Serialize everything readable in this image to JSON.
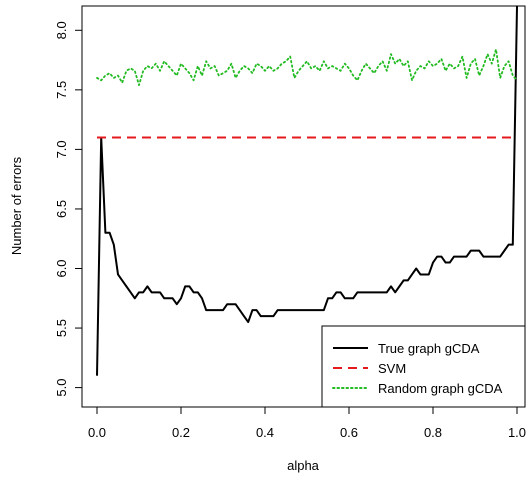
{
  "chart_data": {
    "type": "line",
    "xlabel": "alpha",
    "ylabel": "Number of errors",
    "xlim": [
      0.0,
      1.0
    ],
    "ylim": [
      5.0,
      8.2
    ],
    "xticks": [
      "0.0",
      "0.2",
      "0.4",
      "0.6",
      "0.8",
      "1.0"
    ],
    "yticks": [
      "5.0",
      "5.5",
      "6.0",
      "6.5",
      "7.0",
      "7.5",
      "8.0"
    ],
    "grid": false,
    "legend_position": "bottom-right",
    "series": [
      {
        "name": "True graph gCDA",
        "style": "solid",
        "color": "#000000",
        "x": [
          0.0,
          0.01,
          0.02,
          0.03,
          0.04,
          0.05,
          0.06,
          0.07,
          0.08,
          0.09,
          0.1,
          0.11,
          0.12,
          0.13,
          0.14,
          0.15,
          0.16,
          0.17,
          0.18,
          0.19,
          0.2,
          0.21,
          0.22,
          0.23,
          0.24,
          0.25,
          0.26,
          0.27,
          0.28,
          0.29,
          0.3,
          0.31,
          0.32,
          0.33,
          0.34,
          0.35,
          0.36,
          0.37,
          0.38,
          0.39,
          0.4,
          0.41,
          0.42,
          0.43,
          0.44,
          0.45,
          0.46,
          0.47,
          0.48,
          0.49,
          0.5,
          0.51,
          0.52,
          0.53,
          0.54,
          0.55,
          0.56,
          0.57,
          0.58,
          0.59,
          0.6,
          0.61,
          0.62,
          0.63,
          0.64,
          0.65,
          0.66,
          0.67,
          0.68,
          0.69,
          0.7,
          0.71,
          0.72,
          0.73,
          0.74,
          0.75,
          0.76,
          0.77,
          0.78,
          0.79,
          0.8,
          0.81,
          0.82,
          0.83,
          0.84,
          0.85,
          0.86,
          0.87,
          0.88,
          0.89,
          0.9,
          0.91,
          0.92,
          0.93,
          0.94,
          0.95,
          0.96,
          0.97,
          0.98,
          0.99,
          1.0
        ],
        "y": [
          5.1,
          7.1,
          6.3,
          6.3,
          6.2,
          5.95,
          5.9,
          5.85,
          5.8,
          5.75,
          5.8,
          5.8,
          5.85,
          5.8,
          5.8,
          5.8,
          5.75,
          5.75,
          5.75,
          5.7,
          5.75,
          5.85,
          5.85,
          5.8,
          5.8,
          5.75,
          5.65,
          5.65,
          5.65,
          5.65,
          5.65,
          5.7,
          5.7,
          5.7,
          5.65,
          5.6,
          5.55,
          5.65,
          5.65,
          5.6,
          5.6,
          5.6,
          5.6,
          5.65,
          5.65,
          5.65,
          5.65,
          5.65,
          5.65,
          5.65,
          5.65,
          5.65,
          5.65,
          5.65,
          5.65,
          5.75,
          5.75,
          5.8,
          5.8,
          5.75,
          5.75,
          5.75,
          5.8,
          5.8,
          5.8,
          5.8,
          5.8,
          5.8,
          5.8,
          5.8,
          5.85,
          5.8,
          5.85,
          5.9,
          5.9,
          5.95,
          6.0,
          5.95,
          5.95,
          5.95,
          6.05,
          6.1,
          6.1,
          6.05,
          6.05,
          6.1,
          6.1,
          6.1,
          6.1,
          6.15,
          6.15,
          6.15,
          6.1,
          6.1,
          6.1,
          6.1,
          6.1,
          6.15,
          6.2,
          6.2,
          8.2
        ]
      },
      {
        "name": "SVM",
        "style": "dashed",
        "color": "#e41a1c",
        "x": [
          0.0,
          1.0
        ],
        "y": [
          7.1,
          7.1
        ]
      },
      {
        "name": "Random graph gCDA",
        "style": "dotted",
        "color": "#22bb22",
        "x": [
          0.0,
          0.01,
          0.02,
          0.03,
          0.04,
          0.05,
          0.06,
          0.07,
          0.08,
          0.09,
          0.1,
          0.11,
          0.12,
          0.13,
          0.14,
          0.15,
          0.16,
          0.17,
          0.18,
          0.19,
          0.2,
          0.21,
          0.22,
          0.23,
          0.24,
          0.25,
          0.26,
          0.27,
          0.28,
          0.29,
          0.3,
          0.31,
          0.32,
          0.33,
          0.34,
          0.35,
          0.36,
          0.37,
          0.38,
          0.39,
          0.4,
          0.41,
          0.42,
          0.43,
          0.44,
          0.45,
          0.46,
          0.47,
          0.48,
          0.49,
          0.5,
          0.51,
          0.52,
          0.53,
          0.54,
          0.55,
          0.56,
          0.57,
          0.58,
          0.59,
          0.6,
          0.61,
          0.62,
          0.63,
          0.64,
          0.65,
          0.66,
          0.67,
          0.68,
          0.69,
          0.7,
          0.71,
          0.72,
          0.73,
          0.74,
          0.75,
          0.76,
          0.77,
          0.78,
          0.79,
          0.8,
          0.81,
          0.82,
          0.83,
          0.84,
          0.85,
          0.86,
          0.87,
          0.88,
          0.89,
          0.9,
          0.91,
          0.92,
          0.93,
          0.94,
          0.95,
          0.96,
          0.97,
          0.98,
          0.99,
          1.0
        ],
        "y": [
          7.6,
          7.58,
          7.62,
          7.64,
          7.6,
          7.62,
          7.56,
          7.66,
          7.68,
          7.66,
          7.54,
          7.66,
          7.7,
          7.68,
          7.72,
          7.66,
          7.74,
          7.7,
          7.66,
          7.62,
          7.72,
          7.68,
          7.64,
          7.58,
          7.7,
          7.62,
          7.74,
          7.68,
          7.7,
          7.62,
          7.64,
          7.66,
          7.72,
          7.6,
          7.66,
          7.7,
          7.68,
          7.64,
          7.72,
          7.7,
          7.66,
          7.7,
          7.66,
          7.68,
          7.72,
          7.74,
          7.78,
          7.6,
          7.66,
          7.7,
          7.74,
          7.68,
          7.7,
          7.66,
          7.74,
          7.68,
          7.7,
          7.68,
          7.66,
          7.72,
          7.68,
          7.62,
          7.58,
          7.66,
          7.72,
          7.68,
          7.64,
          7.7,
          7.74,
          7.66,
          7.8,
          7.72,
          7.76,
          7.7,
          7.74,
          7.58,
          7.66,
          7.7,
          7.68,
          7.74,
          7.7,
          7.72,
          7.76,
          7.66,
          7.72,
          7.68,
          7.7,
          7.78,
          7.6,
          7.72,
          7.76,
          7.62,
          7.7,
          7.8,
          7.72,
          7.84,
          7.6,
          7.7,
          7.74,
          7.62,
          7.58
        ]
      }
    ]
  }
}
